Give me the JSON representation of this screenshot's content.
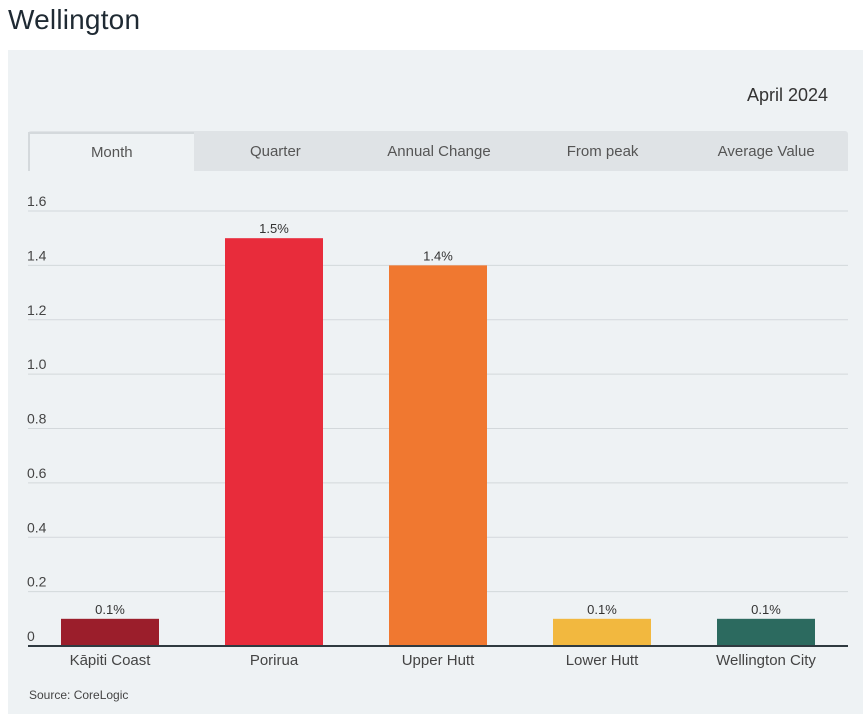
{
  "page": {
    "title": "Wellington"
  },
  "panel": {
    "period": "April 2024",
    "tabs": [
      {
        "label": "Month",
        "active": true
      },
      {
        "label": "Quarter",
        "active": false
      },
      {
        "label": "Annual Change",
        "active": false
      },
      {
        "label": "From peak",
        "active": false
      },
      {
        "label": "Average Value",
        "active": false
      }
    ],
    "source": "Source: CoreLogic"
  },
  "chart_data": {
    "type": "bar",
    "title": "",
    "xlabel": "",
    "ylabel": "",
    "categories": [
      "Kāpiti Coast",
      "Porirua",
      "Upper Hutt",
      "Lower Hutt",
      "Wellington City"
    ],
    "values": [
      0.1,
      1.5,
      1.4,
      0.1,
      0.1
    ],
    "data_labels": [
      "0.1%",
      "1.5%",
      "1.4%",
      "0.1%",
      "0.1%"
    ],
    "colors": [
      "#9b1e2b",
      "#e82c3b",
      "#f07830",
      "#f2b83f",
      "#2c6a5f"
    ],
    "ylim": [
      0,
      1.6
    ],
    "yticks": [
      0,
      0.2,
      0.4,
      0.6,
      0.8,
      1.0,
      1.2,
      1.4,
      1.6
    ],
    "ytick_labels": [
      "0",
      "0.2",
      "0.4",
      "0.6",
      "0.8",
      "1.0",
      "1.2",
      "1.4",
      "1.6"
    ],
    "grid": true
  }
}
